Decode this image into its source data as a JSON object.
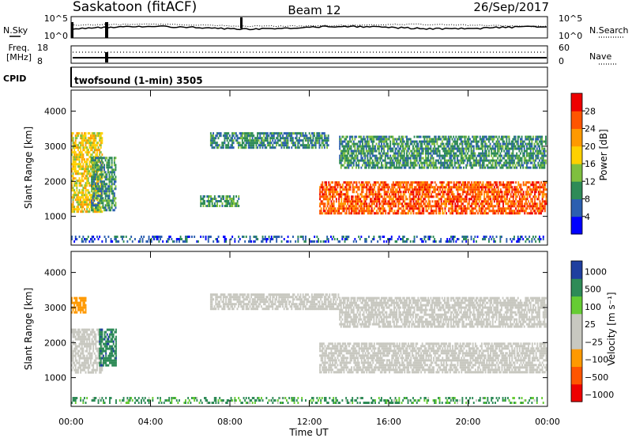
{
  "header": {
    "site": "Saskatoon (fitACF)",
    "beam": "Beam 12",
    "date": "26/Sep/2017"
  },
  "noise_panel": {
    "left_label": "N.Sky",
    "right_label": "N.Search",
    "left_ticks": [
      "10^5",
      "10^0"
    ],
    "right_ticks": [
      "10^5",
      "10^0"
    ]
  },
  "freq_panel": {
    "left_label_line1": "Freq.",
    "left_label_line2": "[MHz]",
    "left_ticks": [
      "18",
      "8"
    ],
    "right_label": "Nave",
    "right_ticks": [
      "60",
      "0"
    ]
  },
  "cpid": {
    "label": "CPID",
    "program": "twofsound (1-min) 3505"
  },
  "colors": {
    "power_scale": [
      "#0000ff",
      "#2b5fb0",
      "#2e8b57",
      "#7fbf3f",
      "#ffd000",
      "#ff9900",
      "#ff5500",
      "#ee0000"
    ],
    "velocity_scale": [
      "#ee0000",
      "#ff5500",
      "#ff9900",
      "#c8c8c0",
      "#c8c8c0",
      "#66cc33",
      "#2e8b57",
      "#1f3f9f"
    ],
    "ground_scatter": "#c8c8c0"
  },
  "chart_data": [
    {
      "type": "heatmap",
      "name": "Power",
      "xlabel": "Time UT",
      "ylabel": "Slant Range [km]",
      "x_ticks": [
        "00:00",
        "04:00",
        "08:00",
        "12:00",
        "16:00",
        "20:00",
        "00:00"
      ],
      "xlim_hours": [
        0,
        24
      ],
      "ylim": [
        180,
        4600
      ],
      "y_ticks": [
        1000,
        2000,
        3000,
        4000
      ],
      "colorbar_label": "Power [dB]",
      "colorbar_ticks": [
        4,
        8,
        12,
        16,
        20,
        24,
        28
      ],
      "colorbar_range": [
        0,
        32
      ],
      "regions": [
        {
          "t0": 0.0,
          "t1": 1.6,
          "r0": 1050,
          "r1": 3400,
          "value": 18
        },
        {
          "t0": 1.0,
          "t1": 2.3,
          "r0": 1100,
          "r1": 2700,
          "value": 10
        },
        {
          "t0": 6.5,
          "t1": 8.5,
          "r0": 1200,
          "r1": 1600,
          "value": 10
        },
        {
          "t0": 7.0,
          "t1": 13.0,
          "r0": 2900,
          "r1": 3400,
          "value": 9
        },
        {
          "t0": 12.5,
          "t1": 24.0,
          "r0": 1000,
          "r1": 2000,
          "value": 26
        },
        {
          "t0": 13.5,
          "t1": 24.0,
          "r0": 2300,
          "r1": 3300,
          "value": 10
        },
        {
          "t0": 0.0,
          "t1": 24.0,
          "r0": 200,
          "r1": 450,
          "value": 6
        }
      ]
    },
    {
      "type": "heatmap",
      "name": "Velocity",
      "xlabel": "Time UT",
      "ylabel": "Slant Range [km]",
      "x_ticks": [
        "00:00",
        "04:00",
        "08:00",
        "12:00",
        "16:00",
        "20:00",
        "00:00"
      ],
      "xlim_hours": [
        0,
        24
      ],
      "ylim": [
        180,
        4600
      ],
      "y_ticks": [
        1000,
        2000,
        3000,
        4000
      ],
      "colorbar_label": "Velocity [m s⁻¹]",
      "colorbar_ticks": [
        "1000",
        "500",
        "100",
        "25",
        "−25",
        "−100",
        "−500",
        "−1000"
      ],
      "regions": [
        {
          "t0": 0.0,
          "t1": 1.6,
          "r0": 1050,
          "r1": 2400,
          "value": 0
        },
        {
          "t0": 0.0,
          "t1": 0.8,
          "r0": 2800,
          "r1": 3300,
          "value": -300
        },
        {
          "t0": 1.4,
          "t1": 2.3,
          "r0": 1300,
          "r1": 2400,
          "value": 400
        },
        {
          "t0": 7.0,
          "t1": 13.5,
          "r0": 2900,
          "r1": 3400,
          "value": 0
        },
        {
          "t0": 12.5,
          "t1": 24.0,
          "r0": 1100,
          "r1": 2000,
          "value": 0
        },
        {
          "t0": 13.5,
          "t1": 24.0,
          "r0": 2400,
          "r1": 3300,
          "value": 0
        },
        {
          "t0": 0.0,
          "t1": 24.0,
          "r0": 200,
          "r1": 450,
          "value": 150
        }
      ]
    }
  ]
}
